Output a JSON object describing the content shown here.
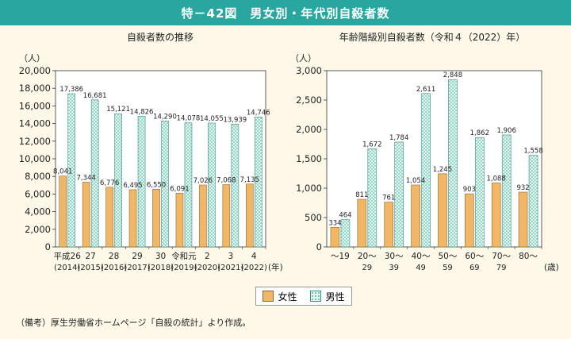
{
  "header": {
    "title": "特－42図　男女別・年代別自殺者数"
  },
  "legend": {
    "female": "女性",
    "male": "男性"
  },
  "note": "（備考）厚生労働省ホームページ「自殺の統計」より作成。",
  "colors": {
    "female": "#f2b766",
    "male_bg": "#e4f4ee",
    "male_dot": "#5ec2b0",
    "header": "#2aa6a0"
  },
  "chart_data": [
    {
      "type": "bar",
      "title": "自殺者数の推移",
      "unit": "（人）",
      "x_suffix": "(年)",
      "ylim": [
        0,
        20000
      ],
      "ytick_step": 2000,
      "yticks": [
        "0",
        "2,000",
        "4,000",
        "6,000",
        "8,000",
        "10,000",
        "12,000",
        "14,000",
        "16,000",
        "18,000",
        "20,000"
      ],
      "categories": [
        {
          "line1": "平成26",
          "line2": "(2014)"
        },
        {
          "line1": "27",
          "line2": "(2015)"
        },
        {
          "line1": "28",
          "line2": "(2016)"
        },
        {
          "line1": "29",
          "line2": "(2017)"
        },
        {
          "line1": "30",
          "line2": "(2018)"
        },
        {
          "line1": "令和元",
          "line2": "(2019)"
        },
        {
          "line1": "2",
          "line2": "(2020)"
        },
        {
          "line1": "3",
          "line2": "(2021)"
        },
        {
          "line1": "4",
          "line2": "(2022)"
        }
      ],
      "series": [
        {
          "name": "女性",
          "values": [
            8041,
            7344,
            6776,
            6495,
            6550,
            6091,
            7026,
            7068,
            7135
          ],
          "labels": [
            "8,041",
            "7,344",
            "6,776",
            "6,495",
            "6,550",
            "6,091",
            "7,026",
            "7,068",
            "7,135"
          ]
        },
        {
          "name": "男性",
          "values": [
            17386,
            16681,
            15121,
            14826,
            14290,
            14078,
            14055,
            13939,
            14746
          ],
          "labels": [
            "17,386",
            "16,681",
            "15,121",
            "14,826",
            "14,290",
            "14,078",
            "14,055",
            "13,939",
            "14,746"
          ]
        }
      ]
    },
    {
      "type": "bar",
      "title": "年齢階級別自殺者数（令和４（2022）年）",
      "unit": "（人）",
      "x_suffix": "(歳)",
      "ylim": [
        0,
        3000
      ],
      "ytick_step": 500,
      "yticks": [
        "0",
        "500",
        "1,000",
        "1,500",
        "2,000",
        "2,500",
        "3,000"
      ],
      "categories": [
        {
          "line1": "～19",
          "line2": ""
        },
        {
          "line1": "20～",
          "line2": "29"
        },
        {
          "line1": "30～",
          "line2": "39"
        },
        {
          "line1": "40～",
          "line2": "49"
        },
        {
          "line1": "50～",
          "line2": "59"
        },
        {
          "line1": "60～",
          "line2": "69"
        },
        {
          "line1": "70～",
          "line2": "79"
        },
        {
          "line1": "80～",
          "line2": ""
        }
      ],
      "series": [
        {
          "name": "女性",
          "values": [
            334,
            811,
            761,
            1054,
            1245,
            903,
            1088,
            932
          ],
          "labels": [
            "334",
            "811",
            "761",
            "1,054",
            "1,245",
            "903",
            "1,088",
            "932"
          ]
        },
        {
          "name": "男性",
          "values": [
            464,
            1672,
            1784,
            2611,
            2848,
            1862,
            1906,
            1558
          ],
          "labels": [
            "464",
            "1,672",
            "1,784",
            "2,611",
            "2,848",
            "1,862",
            "1,906",
            "1,558"
          ]
        }
      ]
    }
  ]
}
